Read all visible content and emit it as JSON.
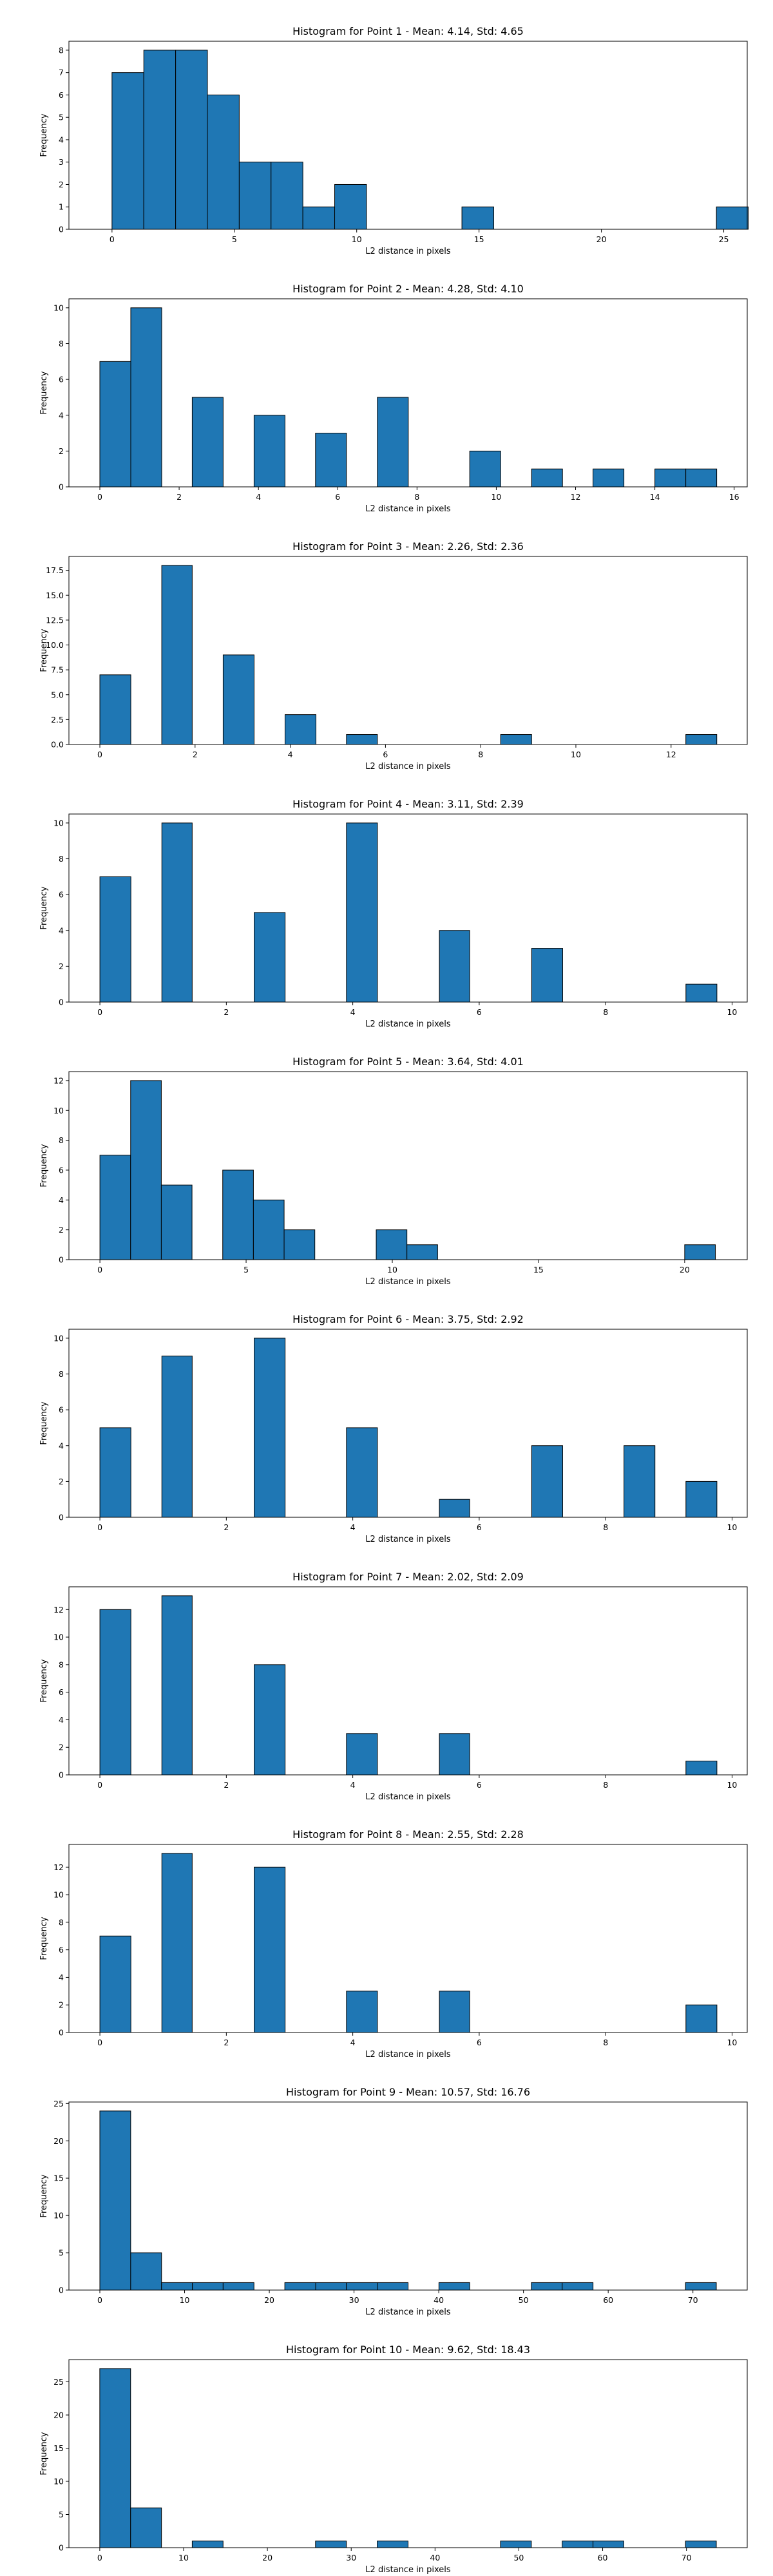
{
  "chart_data": [
    {
      "type": "bar",
      "title": "Histogram for Point 1 - Mean: 4.14, Std: 4.65",
      "xlabel": "L2 distance in pixels",
      "ylabel": "Frequency",
      "xlim": [
        -1.76,
        25.96
      ],
      "ylim": [
        0,
        8.4
      ],
      "xticks": [
        0,
        5,
        10,
        15,
        20,
        25
      ],
      "xtick_labels": [
        "0",
        "5",
        "10",
        "15",
        "20",
        "25"
      ],
      "yticks": [
        0,
        1,
        2,
        3,
        4,
        5,
        6,
        7,
        8
      ],
      "ytick_labels": [
        "0",
        "1",
        "2",
        "3",
        "4",
        "5",
        "6",
        "7",
        "8"
      ],
      "bins": [
        {
          "x0": 0.0,
          "x1": 1.3,
          "count": 7
        },
        {
          "x0": 1.3,
          "x1": 2.6,
          "count": 8
        },
        {
          "x0": 2.6,
          "x1": 3.9,
          "count": 8
        },
        {
          "x0": 3.9,
          "x1": 5.2,
          "count": 6
        },
        {
          "x0": 5.2,
          "x1": 6.5,
          "count": 3
        },
        {
          "x0": 6.5,
          "x1": 7.8,
          "count": 3
        },
        {
          "x0": 7.8,
          "x1": 9.1,
          "count": 1
        },
        {
          "x0": 9.1,
          "x1": 10.4,
          "count": 2
        },
        {
          "x0": 14.3,
          "x1": 15.6,
          "count": 1
        },
        {
          "x0": 24.7,
          "x1": 26.0,
          "count": 1
        }
      ]
    },
    {
      "type": "bar",
      "title": "Histogram for Point 2 - Mean: 4.28, Std: 4.10",
      "xlabel": "L2 distance in pixels",
      "ylabel": "Frequency",
      "xlim": [
        -0.78,
        16.33
      ],
      "ylim": [
        0,
        10.5
      ],
      "xticks": [
        0,
        2,
        4,
        6,
        8,
        10,
        12,
        14,
        16
      ],
      "xtick_labels": [
        "0",
        "2",
        "4",
        "6",
        "8",
        "10",
        "12",
        "14",
        "16"
      ],
      "yticks": [
        0,
        2,
        4,
        6,
        8,
        10
      ],
      "ytick_labels": [
        "0",
        "2",
        "4",
        "6",
        "8",
        "10"
      ],
      "bins": [
        {
          "x0": 0.0,
          "x1": 0.78,
          "count": 7
        },
        {
          "x0": 0.78,
          "x1": 1.56,
          "count": 10
        },
        {
          "x0": 2.33,
          "x1": 3.11,
          "count": 5
        },
        {
          "x0": 3.89,
          "x1": 4.67,
          "count": 4
        },
        {
          "x0": 5.44,
          "x1": 6.22,
          "count": 3
        },
        {
          "x0": 7.0,
          "x1": 7.78,
          "count": 5
        },
        {
          "x0": 9.33,
          "x1": 10.11,
          "count": 2
        },
        {
          "x0": 10.89,
          "x1": 11.67,
          "count": 1
        },
        {
          "x0": 12.44,
          "x1": 13.22,
          "count": 1
        },
        {
          "x0": 14.0,
          "x1": 14.78,
          "count": 1
        },
        {
          "x0": 14.78,
          "x1": 15.56,
          "count": 1
        }
      ]
    },
    {
      "type": "bar",
      "title": "Histogram for Point 3 - Mean: 2.26, Std: 2.36",
      "xlabel": "L2 distance in pixels",
      "ylabel": "Frequency",
      "xlim": [
        -0.65,
        13.6
      ],
      "ylim": [
        0,
        18.9
      ],
      "xticks": [
        0,
        2,
        4,
        6,
        8,
        10,
        12
      ],
      "xtick_labels": [
        "0",
        "2",
        "4",
        "6",
        "8",
        "10",
        "12"
      ],
      "yticks": [
        0,
        2.5,
        5.0,
        7.5,
        10.0,
        12.5,
        15.0,
        17.5
      ],
      "ytick_labels": [
        "0.0",
        "2.5",
        "5.0",
        "7.5",
        "10.0",
        "12.5",
        "15.0",
        "17.5"
      ],
      "bins": [
        {
          "x0": 0.0,
          "x1": 0.65,
          "count": 7
        },
        {
          "x0": 1.3,
          "x1": 1.94,
          "count": 18
        },
        {
          "x0": 2.59,
          "x1": 3.24,
          "count": 9
        },
        {
          "x0": 3.89,
          "x1": 4.54,
          "count": 3
        },
        {
          "x0": 5.18,
          "x1": 5.83,
          "count": 1
        },
        {
          "x0": 8.42,
          "x1": 9.07,
          "count": 1
        },
        {
          "x0": 12.31,
          "x1": 12.96,
          "count": 1
        }
      ]
    },
    {
      "type": "bar",
      "title": "Histogram for Point 4 - Mean: 3.11, Std: 2.39",
      "xlabel": "L2 distance in pixels",
      "ylabel": "Frequency",
      "xlim": [
        -0.49,
        10.24
      ],
      "ylim": [
        0,
        10.5
      ],
      "xticks": [
        0,
        2,
        4,
        6,
        8,
        10
      ],
      "xtick_labels": [
        "0",
        "2",
        "4",
        "6",
        "8",
        "10"
      ],
      "yticks": [
        0,
        2,
        4,
        6,
        8,
        10
      ],
      "ytick_labels": [
        "0",
        "2",
        "4",
        "6",
        "8",
        "10"
      ],
      "bins": [
        {
          "x0": 0.0,
          "x1": 0.49,
          "count": 7
        },
        {
          "x0": 0.98,
          "x1": 1.46,
          "count": 10
        },
        {
          "x0": 2.44,
          "x1": 2.93,
          "count": 5
        },
        {
          "x0": 3.9,
          "x1": 4.39,
          "count": 10
        },
        {
          "x0": 5.37,
          "x1": 5.85,
          "count": 4
        },
        {
          "x0": 6.83,
          "x1": 7.32,
          "count": 3
        },
        {
          "x0": 9.27,
          "x1": 9.76,
          "count": 1
        }
      ]
    },
    {
      "type": "bar",
      "title": "Histogram for Point 5 - Mean: 3.64, Std: 4.01",
      "xlabel": "L2 distance in pixels",
      "ylabel": "Frequency",
      "xlim": [
        -1.06,
        22.14
      ],
      "ylim": [
        0,
        12.6
      ],
      "xticks": [
        0,
        5,
        10,
        15,
        20
      ],
      "xtick_labels": [
        "0",
        "5",
        "10",
        "15",
        "20"
      ],
      "yticks": [
        0,
        2,
        4,
        6,
        8,
        10,
        12
      ],
      "ytick_labels": [
        "0",
        "2",
        "4",
        "6",
        "8",
        "10",
        "12"
      ],
      "bins": [
        {
          "x0": 0.0,
          "x1": 1.05,
          "count": 7
        },
        {
          "x0": 1.05,
          "x1": 2.1,
          "count": 12
        },
        {
          "x0": 2.1,
          "x1": 3.15,
          "count": 5
        },
        {
          "x0": 4.2,
          "x1": 5.25,
          "count": 6
        },
        {
          "x0": 5.25,
          "x1": 6.3,
          "count": 4
        },
        {
          "x0": 6.3,
          "x1": 7.35,
          "count": 2
        },
        {
          "x0": 9.45,
          "x1": 10.5,
          "count": 2
        },
        {
          "x0": 10.5,
          "x1": 11.55,
          "count": 1
        },
        {
          "x0": 20.0,
          "x1": 21.05,
          "count": 1
        }
      ]
    },
    {
      "type": "bar",
      "title": "Histogram for Point 6 - Mean: 3.75, Std: 2.92",
      "xlabel": "L2 distance in pixels",
      "ylabel": "Frequency",
      "xlim": [
        -0.49,
        10.24
      ],
      "ylim": [
        0,
        10.5
      ],
      "xticks": [
        0,
        2,
        4,
        6,
        8,
        10
      ],
      "xtick_labels": [
        "0",
        "2",
        "4",
        "6",
        "8",
        "10"
      ],
      "yticks": [
        0,
        2,
        4,
        6,
        8,
        10
      ],
      "ytick_labels": [
        "0",
        "2",
        "4",
        "6",
        "8",
        "10"
      ],
      "bins": [
        {
          "x0": 0.0,
          "x1": 0.49,
          "count": 5
        },
        {
          "x0": 0.98,
          "x1": 1.46,
          "count": 9
        },
        {
          "x0": 2.44,
          "x1": 2.93,
          "count": 10
        },
        {
          "x0": 3.9,
          "x1": 4.39,
          "count": 5
        },
        {
          "x0": 5.37,
          "x1": 5.85,
          "count": 1
        },
        {
          "x0": 6.83,
          "x1": 7.32,
          "count": 4
        },
        {
          "x0": 8.29,
          "x1": 8.78,
          "count": 4
        },
        {
          "x0": 9.27,
          "x1": 9.76,
          "count": 2
        }
      ]
    },
    {
      "type": "bar",
      "title": "Histogram for Point 7 - Mean: 2.02, Std: 2.09",
      "xlabel": "L2 distance in pixels",
      "ylabel": "Frequency",
      "xlim": [
        -0.49,
        10.24
      ],
      "ylim": [
        0,
        13.65
      ],
      "xticks": [
        0,
        2,
        4,
        6,
        8,
        10
      ],
      "xtick_labels": [
        "0",
        "2",
        "4",
        "6",
        "8",
        "10"
      ],
      "yticks": [
        0,
        2,
        4,
        6,
        8,
        10,
        12
      ],
      "ytick_labels": [
        "0",
        "2",
        "4",
        "6",
        "8",
        "10",
        "12"
      ],
      "bins": [
        {
          "x0": 0.0,
          "x1": 0.49,
          "count": 12
        },
        {
          "x0": 0.98,
          "x1": 1.46,
          "count": 13
        },
        {
          "x0": 2.44,
          "x1": 2.93,
          "count": 8
        },
        {
          "x0": 3.9,
          "x1": 4.39,
          "count": 3
        },
        {
          "x0": 5.37,
          "x1": 5.85,
          "count": 3
        },
        {
          "x0": 9.27,
          "x1": 9.76,
          "count": 1
        }
      ]
    },
    {
      "type": "bar",
      "title": "Histogram for Point 8 - Mean: 2.55, Std: 2.28",
      "xlabel": "L2 distance in pixels",
      "ylabel": "Frequency",
      "xlim": [
        -0.49,
        10.24
      ],
      "ylim": [
        0,
        13.65
      ],
      "xticks": [
        0,
        2,
        4,
        6,
        8,
        10
      ],
      "xtick_labels": [
        "0",
        "2",
        "4",
        "6",
        "8",
        "10"
      ],
      "yticks": [
        0,
        2,
        4,
        6,
        8,
        10,
        12
      ],
      "ytick_labels": [
        "0",
        "2",
        "4",
        "6",
        "8",
        "10",
        "12"
      ],
      "bins": [
        {
          "x0": 0.0,
          "x1": 0.49,
          "count": 7
        },
        {
          "x0": 0.98,
          "x1": 1.46,
          "count": 13
        },
        {
          "x0": 2.44,
          "x1": 2.93,
          "count": 12
        },
        {
          "x0": 3.9,
          "x1": 4.39,
          "count": 3
        },
        {
          "x0": 5.37,
          "x1": 5.85,
          "count": 3
        },
        {
          "x0": 9.27,
          "x1": 9.76,
          "count": 2
        }
      ]
    },
    {
      "type": "bar",
      "title": "Histogram for Point 9 - Mean: 10.57, Std: 16.76",
      "xlabel": "L2 distance in pixels",
      "ylabel": "Frequency",
      "xlim": [
        -3.65,
        76.41
      ],
      "ylim": [
        0,
        25.2
      ],
      "xticks": [
        0,
        10,
        20,
        30,
        40,
        50,
        60,
        70
      ],
      "xtick_labels": [
        "0",
        "10",
        "20",
        "30",
        "40",
        "50",
        "60",
        "70"
      ],
      "yticks": [
        0,
        5,
        10,
        15,
        20,
        25
      ],
      "ytick_labels": [
        "0",
        "5",
        "10",
        "15",
        "20",
        "25"
      ],
      "bins": [
        {
          "x0": 0.0,
          "x1": 3.64,
          "count": 24
        },
        {
          "x0": 3.64,
          "x1": 7.28,
          "count": 5
        },
        {
          "x0": 7.28,
          "x1": 10.92,
          "count": 1
        },
        {
          "x0": 10.92,
          "x1": 14.55,
          "count": 1
        },
        {
          "x0": 14.55,
          "x1": 18.19,
          "count": 1
        },
        {
          "x0": 21.83,
          "x1": 25.47,
          "count": 1
        },
        {
          "x0": 25.47,
          "x1": 29.1,
          "count": 1
        },
        {
          "x0": 29.1,
          "x1": 32.74,
          "count": 1
        },
        {
          "x0": 32.74,
          "x1": 36.38,
          "count": 1
        },
        {
          "x0": 40.02,
          "x1": 43.66,
          "count": 1
        },
        {
          "x0": 50.93,
          "x1": 54.57,
          "count": 1
        },
        {
          "x0": 54.57,
          "x1": 58.21,
          "count": 1
        },
        {
          "x0": 69.12,
          "x1": 72.76,
          "count": 1
        }
      ]
    },
    {
      "type": "bar",
      "title": "Histogram for Point 10 - Mean: 9.62, Std: 18.43",
      "xlabel": "L2 distance in pixels",
      "ylabel": "Frequency",
      "xlim": [
        -3.68,
        77.25
      ],
      "ylim": [
        0,
        28.35
      ],
      "xticks": [
        0,
        10,
        20,
        30,
        40,
        50,
        60,
        70
      ],
      "xtick_labels": [
        "0",
        "10",
        "20",
        "30",
        "40",
        "50",
        "60",
        "70"
      ],
      "yticks": [
        0,
        5,
        10,
        15,
        20,
        25
      ],
      "ytick_labels": [
        "0",
        "5",
        "10",
        "15",
        "20",
        "25"
      ],
      "bins": [
        {
          "x0": 0.0,
          "x1": 3.68,
          "count": 27
        },
        {
          "x0": 3.68,
          "x1": 7.36,
          "count": 6
        },
        {
          "x0": 11.03,
          "x1": 14.71,
          "count": 1
        },
        {
          "x0": 25.74,
          "x1": 29.42,
          "count": 1
        },
        {
          "x0": 33.1,
          "x1": 36.78,
          "count": 1
        },
        {
          "x0": 47.81,
          "x1": 51.49,
          "count": 1
        },
        {
          "x0": 55.17,
          "x1": 58.85,
          "count": 1
        },
        {
          "x0": 58.85,
          "x1": 62.52,
          "count": 1
        },
        {
          "x0": 69.88,
          "x1": 73.56,
          "count": 1
        }
      ]
    }
  ]
}
